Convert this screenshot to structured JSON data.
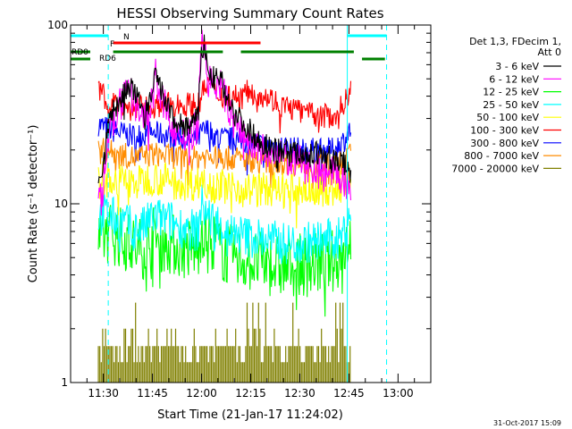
{
  "chart_data": {
    "type": "line",
    "title": "HESSI Observing Summary Count Rates",
    "xlabel": "Start Time (21-Jan-17 11:24:02)",
    "ylabel": "Count Rate (s⁻¹ detector⁻¹)",
    "yscale": "log",
    "ylim": [
      1,
      100
    ],
    "y_ticks": [
      "1",
      "10",
      "100"
    ],
    "x_range_minutes": [
      680,
      790
    ],
    "x_ticks": [
      {
        "t": 690,
        "label": "11:30"
      },
      {
        "t": 705,
        "label": "11:45"
      },
      {
        "t": 720,
        "label": "12:00"
      },
      {
        "t": 735,
        "label": "12:15"
      },
      {
        "t": 750,
        "label": "12:30"
      },
      {
        "t": 765,
        "label": "12:45"
      },
      {
        "t": 780,
        "label": "13:00"
      }
    ],
    "legend_position": "right",
    "legend_header": [
      "Det 1,3, FDecim 1,",
      "Att 0"
    ],
    "footer_date": "31-Oct-2017 15:09",
    "data_window": [
      688.5,
      765.7
    ],
    "series": [
      {
        "name": "3 - 6 keV",
        "color": "#000000",
        "noise": 0.035,
        "points": [
          [
            688.5,
            14
          ],
          [
            690,
            16
          ],
          [
            692,
            30
          ],
          [
            695,
            38
          ],
          [
            698,
            45
          ],
          [
            700,
            40
          ],
          [
            703,
            32
          ],
          [
            705,
            40
          ],
          [
            706,
            55
          ],
          [
            707,
            45
          ],
          [
            710,
            34
          ],
          [
            712,
            28
          ],
          [
            716,
            27
          ],
          [
            719,
            30
          ],
          [
            720,
            72
          ],
          [
            721,
            78
          ],
          [
            722,
            52
          ],
          [
            724,
            50
          ],
          [
            726,
            48
          ],
          [
            728,
            40
          ],
          [
            730,
            32
          ],
          [
            733,
            28
          ],
          [
            736,
            24
          ],
          [
            740,
            21
          ],
          [
            745,
            20
          ],
          [
            750,
            19
          ],
          [
            755,
            19
          ],
          [
            760,
            18
          ],
          [
            763,
            17
          ],
          [
            765.7,
            15
          ]
        ]
      },
      {
        "name": "6 - 12 keV",
        "color": "#ff00ff",
        "noise": 0.05,
        "points": [
          [
            688.5,
            11
          ],
          [
            690,
            12
          ],
          [
            692,
            26
          ],
          [
            695,
            35
          ],
          [
            698,
            42
          ],
          [
            700,
            36
          ],
          [
            703,
            30
          ],
          [
            705,
            38
          ],
          [
            706,
            52
          ],
          [
            707,
            42
          ],
          [
            710,
            30
          ],
          [
            712,
            25
          ],
          [
            716,
            23
          ],
          [
            719,
            28
          ],
          [
            720,
            80
          ],
          [
            721,
            74
          ],
          [
            722,
            48
          ],
          [
            724,
            47
          ],
          [
            726,
            45
          ],
          [
            728,
            35
          ],
          [
            730,
            28
          ],
          [
            733,
            24
          ],
          [
            736,
            21
          ],
          [
            740,
            19
          ],
          [
            745,
            18
          ],
          [
            750,
            17
          ],
          [
            755,
            16
          ],
          [
            760,
            15
          ],
          [
            763,
            14
          ],
          [
            765.7,
            12
          ]
        ]
      },
      {
        "name": "12 - 25 keV",
        "color": "#00ff00",
        "noise": 0.09,
        "points": [
          [
            688.5,
            6
          ],
          [
            690,
            6.5
          ],
          [
            692,
            7
          ],
          [
            695,
            6.5
          ],
          [
            698,
            6
          ],
          [
            700,
            5.5
          ],
          [
            703,
            5.8
          ],
          [
            705,
            6.5
          ],
          [
            710,
            6
          ],
          [
            715,
            5.6
          ],
          [
            719,
            5.5
          ],
          [
            720,
            7.5
          ],
          [
            722,
            6.5
          ],
          [
            725,
            5.8
          ],
          [
            728,
            5.2
          ],
          [
            730,
            5
          ],
          [
            735,
            4.8
          ],
          [
            740,
            4.6
          ],
          [
            745,
            4.4
          ],
          [
            750,
            4.5
          ],
          [
            755,
            4.6
          ],
          [
            760,
            4.8
          ],
          [
            763,
            5.2
          ],
          [
            765.7,
            7
          ]
        ]
      },
      {
        "name": "25 - 50 keV",
        "color": "#00ffff",
        "noise": 0.06,
        "points": [
          [
            688.5,
            8
          ],
          [
            690,
            9
          ],
          [
            692,
            8.5
          ],
          [
            695,
            8
          ],
          [
            698,
            7.5
          ],
          [
            700,
            7.2
          ],
          [
            703,
            7.5
          ],
          [
            705,
            8.5
          ],
          [
            710,
            8
          ],
          [
            715,
            7.3
          ],
          [
            719,
            7
          ],
          [
            720,
            10
          ],
          [
            722,
            8.5
          ],
          [
            725,
            7.8
          ],
          [
            728,
            7
          ],
          [
            730,
            6.8
          ],
          [
            735,
            6.5
          ],
          [
            740,
            6.3
          ],
          [
            745,
            6
          ],
          [
            750,
            6
          ],
          [
            755,
            6.2
          ],
          [
            760,
            6.3
          ],
          [
            763,
            6.5
          ],
          [
            765.7,
            9.5
          ]
        ]
      },
      {
        "name": "50 - 100 keV",
        "color": "#ffff00",
        "noise": 0.05,
        "points": [
          [
            688.5,
            13
          ],
          [
            690,
            14
          ],
          [
            695,
            13.5
          ],
          [
            700,
            13
          ],
          [
            705,
            14
          ],
          [
            710,
            13.5
          ],
          [
            715,
            13
          ],
          [
            719,
            13
          ],
          [
            720,
            14
          ],
          [
            722,
            13
          ],
          [
            725,
            12.5
          ],
          [
            730,
            12.5
          ],
          [
            735,
            12
          ],
          [
            740,
            12
          ],
          [
            745,
            12
          ],
          [
            750,
            12
          ],
          [
            755,
            12
          ],
          [
            760,
            12
          ],
          [
            763,
            12.5
          ],
          [
            765.7,
            14
          ]
        ]
      },
      {
        "name": "100 - 300 keV",
        "color": "#ff0000",
        "noise": 0.035,
        "points": [
          [
            688.5,
            42
          ],
          [
            690,
            40
          ],
          [
            692,
            38
          ],
          [
            695,
            36
          ],
          [
            698,
            34
          ],
          [
            700,
            34
          ],
          [
            705,
            35
          ],
          [
            710,
            36
          ],
          [
            715,
            36
          ],
          [
            719,
            36
          ],
          [
            720,
            40
          ],
          [
            722,
            48
          ],
          [
            724,
            42
          ],
          [
            727,
            40
          ],
          [
            730,
            40
          ],
          [
            733,
            42
          ],
          [
            736,
            42
          ],
          [
            740,
            40
          ],
          [
            744,
            36
          ],
          [
            748,
            34
          ],
          [
            752,
            32
          ],
          [
            756,
            31
          ],
          [
            760,
            31
          ],
          [
            762,
            33
          ],
          [
            764,
            38
          ],
          [
            765.7,
            45
          ]
        ]
      },
      {
        "name": "300 - 800 keV",
        "color": "#0000ff",
        "noise": 0.035,
        "points": [
          [
            688.5,
            28
          ],
          [
            690,
            27
          ],
          [
            692,
            26
          ],
          [
            695,
            25
          ],
          [
            698,
            24
          ],
          [
            700,
            24
          ],
          [
            705,
            25
          ],
          [
            710,
            24
          ],
          [
            715,
            23
          ],
          [
            719,
            23
          ],
          [
            720,
            25
          ],
          [
            722,
            26
          ],
          [
            724,
            24
          ],
          [
            727,
            23
          ],
          [
            730,
            23
          ],
          [
            735,
            22
          ],
          [
            740,
            21
          ],
          [
            745,
            21
          ],
          [
            750,
            20
          ],
          [
            755,
            20
          ],
          [
            760,
            20
          ],
          [
            763,
            22
          ],
          [
            765.7,
            26
          ]
        ]
      },
      {
        "name": "800 - 7000 keV",
        "color": "#ff8c00",
        "noise": 0.035,
        "points": [
          [
            688.5,
            20
          ],
          [
            690,
            20
          ],
          [
            695,
            19
          ],
          [
            700,
            18
          ],
          [
            705,
            19
          ],
          [
            710,
            18.5
          ],
          [
            715,
            18
          ],
          [
            719,
            18
          ],
          [
            720,
            18.5
          ],
          [
            725,
            18
          ],
          [
            730,
            18
          ],
          [
            735,
            17.5
          ],
          [
            740,
            17
          ],
          [
            745,
            17
          ],
          [
            750,
            16.5
          ],
          [
            755,
            16.5
          ],
          [
            760,
            16.5
          ],
          [
            763,
            17
          ],
          [
            765.7,
            19
          ]
        ]
      },
      {
        "name": "7000 - 20000 keV",
        "color": "#808000",
        "type": "bars",
        "levels": [
          1.3,
          1.6,
          2.0
        ]
      }
    ]
  },
  "flags": [
    {
      "name": "N",
      "color": "#00ffff",
      "y": 95,
      "segments": [
        [
          680,
          691.5
        ],
        [
          764.5,
          776.5
        ]
      ]
    },
    {
      "name": "F",
      "color": "#ff0000",
      "y": 82,
      "segments": [
        [
          693,
          738
        ]
      ]
    },
    {
      "name": "RD0",
      "color": "#008000",
      "y": 70,
      "segments": [
        [
          680,
          686
        ],
        [
          693,
          726.5
        ],
        [
          732,
          766.5
        ]
      ]
    },
    {
      "name": "RD6",
      "color": "#008000",
      "y": 63,
      "segments": [
        [
          680,
          686
        ],
        [
          769,
          776
        ]
      ]
    }
  ],
  "saa_markers": {
    "color": "#00ffff",
    "solid": [
      764.5
    ],
    "dashed": [
      691.5,
      776.5
    ]
  }
}
